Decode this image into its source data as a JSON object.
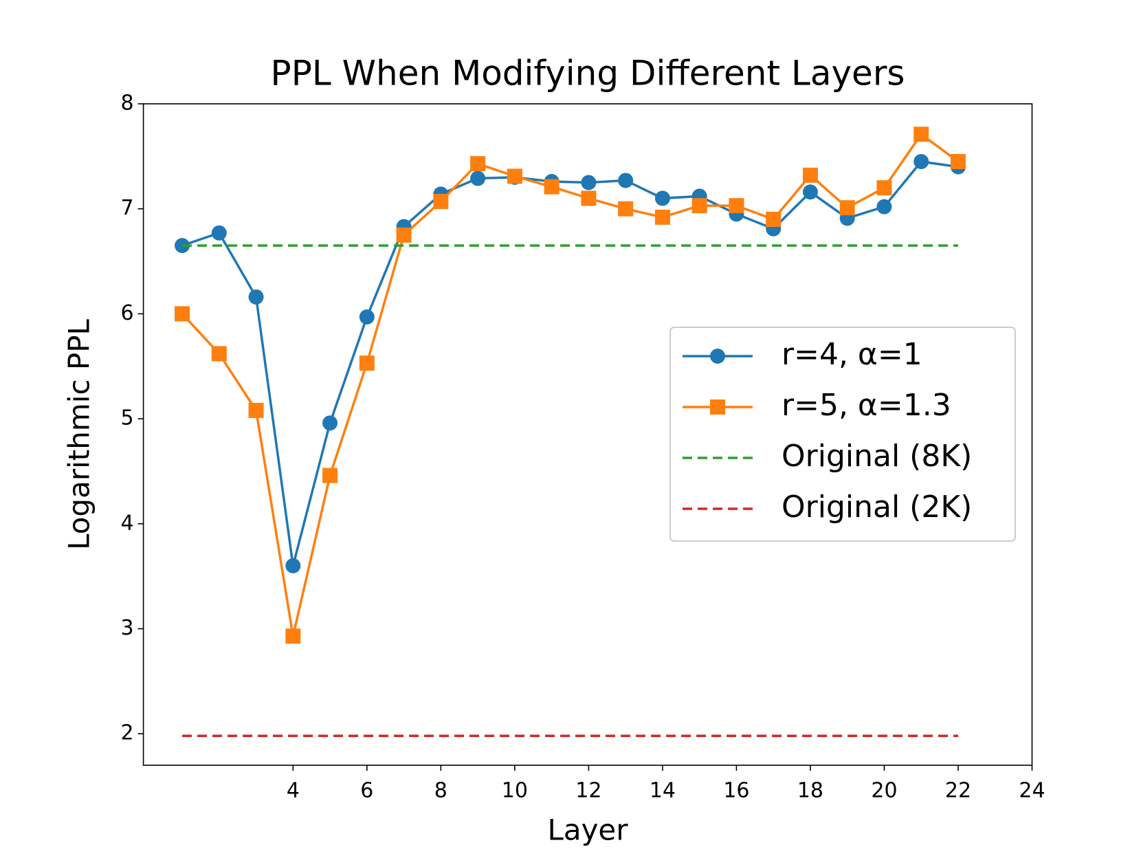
{
  "chart_data": {
    "type": "line",
    "title": "PPL When Modifying Different Layers",
    "xlabel": "Layer",
    "ylabel": "Logarithmic PPL",
    "x": [
      1,
      2,
      3,
      4,
      5,
      6,
      7,
      8,
      9,
      10,
      11,
      12,
      13,
      14,
      15,
      16,
      17,
      18,
      19,
      20,
      21,
      22
    ],
    "series": [
      {
        "name": "r=4, α=1",
        "color": "#1f77b4",
        "marker": "circle",
        "values": [
          6.65,
          6.77,
          6.16,
          3.6,
          4.96,
          5.97,
          6.83,
          7.14,
          7.29,
          7.3,
          7.26,
          7.25,
          7.27,
          7.1,
          7.12,
          6.95,
          6.81,
          7.16,
          6.91,
          7.02,
          7.45,
          7.4
        ]
      },
      {
        "name": "r=5, α=1.3",
        "color": "#ff7f0e",
        "marker": "square",
        "values": [
          6.0,
          5.62,
          5.08,
          2.93,
          4.46,
          5.53,
          6.75,
          7.07,
          7.43,
          7.31,
          7.21,
          7.1,
          7.0,
          6.92,
          7.03,
          7.03,
          6.9,
          7.32,
          7.01,
          7.2,
          7.71,
          7.45
        ]
      },
      {
        "name": "Original (8K)",
        "color": "#2ca02c",
        "dashed": true,
        "x": [
          1,
          22
        ],
        "values": [
          6.65,
          6.65
        ]
      },
      {
        "name": "Original (2K)",
        "color": "#d62728",
        "dashed": true,
        "x": [
          1,
          22
        ],
        "values": [
          1.98,
          1.98
        ]
      }
    ],
    "xlim": [
      -0.05,
      24
    ],
    "xticks": [
      4,
      6,
      8,
      10,
      12,
      14,
      16,
      18,
      20,
      22,
      24
    ],
    "ylim": [
      1.7,
      8
    ],
    "yticks": [
      2,
      3,
      4,
      5,
      6,
      7,
      8
    ],
    "legend": "right"
  }
}
